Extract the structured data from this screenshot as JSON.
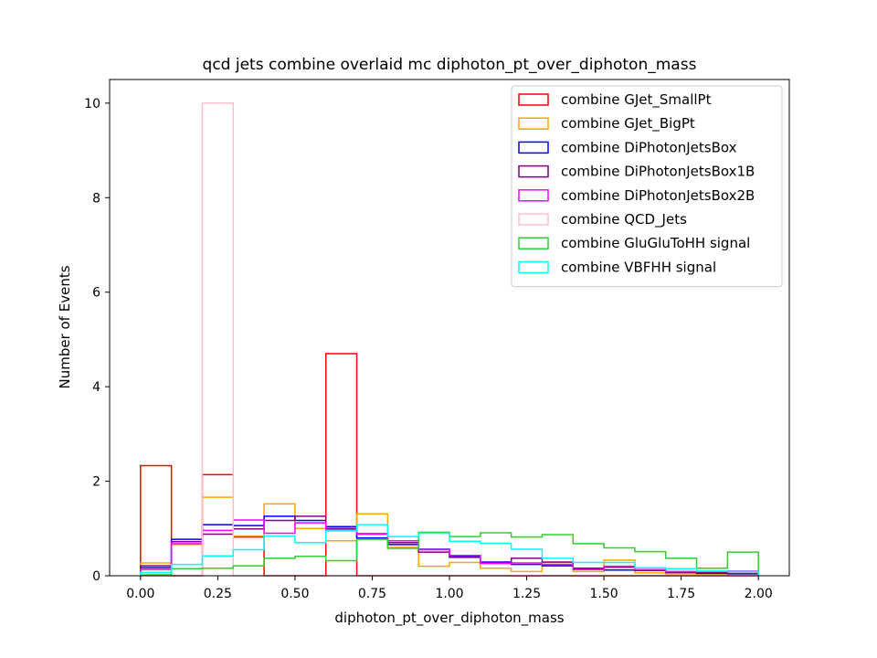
{
  "chart_data": {
    "type": "histogram",
    "title": "qcd jets combine overlaid mc diphoton_pt_over_diphoton_mass",
    "xlabel": "diphoton_pt_over_diphoton_mass",
    "ylabel": "Number of Events",
    "xlim": [
      -0.1,
      2.1
    ],
    "ylim": [
      0,
      10.5
    ],
    "grid": false,
    "legend_position": "top-right",
    "bin_edges": [
      0.0,
      0.1,
      0.2,
      0.3,
      0.4,
      0.5,
      0.6,
      0.7,
      0.8,
      0.9,
      1.0,
      1.1,
      1.2,
      1.3,
      1.4,
      1.5,
      1.6,
      1.7,
      1.8,
      1.9,
      2.0
    ],
    "x_ticks": [
      "0.00",
      "0.25",
      "0.50",
      "0.75",
      "1.00",
      "1.25",
      "1.50",
      "1.75",
      "2.00"
    ],
    "x_tick_values": [
      0,
      0.25,
      0.5,
      0.75,
      1.0,
      1.25,
      1.5,
      1.75,
      2.0
    ],
    "y_ticks": [
      "0",
      "2",
      "4",
      "6",
      "8",
      "10"
    ],
    "y_tick_values": [
      0,
      2,
      4,
      6,
      8,
      10
    ],
    "series": [
      {
        "name": "combine GJet_SmallPt",
        "color": "#ff0000",
        "values": [
          2.33,
          0,
          2.14,
          0.82,
          0,
          0,
          4.7,
          0,
          0,
          0,
          0,
          0,
          0,
          0,
          0,
          0,
          0,
          0,
          0,
          0
        ]
      },
      {
        "name": "combine GJet_BigPt",
        "color": "#ffa500",
        "values": [
          0.27,
          0.66,
          1.66,
          0.84,
          1.52,
          1.0,
          0.74,
          1.31,
          0.6,
          0.2,
          0.28,
          0.16,
          0.09,
          0.28,
          0.09,
          0.33,
          0.06,
          0.04,
          0.02,
          0.01
        ]
      },
      {
        "name": "combine DiPhotonJetsBox",
        "color": "#0000ff",
        "values": [
          0.17,
          0.77,
          1.08,
          1.06,
          1.26,
          1.17,
          1.04,
          0.8,
          0.66,
          0.56,
          0.41,
          0.29,
          0.24,
          0.21,
          0.14,
          0.12,
          0.11,
          0.07,
          0.05,
          0.04
        ]
      },
      {
        "name": "combine DiPhotonJetsBox1B",
        "color": "#800080",
        "values": [
          0.21,
          0.72,
          0.88,
          0.99,
          1.17,
          1.26,
          1.0,
          0.89,
          0.7,
          0.5,
          0.39,
          0.28,
          0.37,
          0.29,
          0.16,
          0.18,
          0.11,
          0.07,
          0.07,
          0.05
        ]
      },
      {
        "name": "combine DiPhotonJetsBox2B",
        "color": "#ff00ff",
        "values": [
          0.13,
          0.68,
          0.96,
          1.18,
          0.9,
          1.12,
          0.97,
          0.88,
          0.74,
          0.55,
          0.43,
          0.26,
          0.27,
          0.24,
          0.13,
          0.2,
          0.13,
          0.09,
          0.09,
          0.1
        ]
      },
      {
        "name": "combine QCD_Jets",
        "color": "#ffc0cb",
        "values": [
          0,
          0,
          10.0,
          0,
          0,
          0,
          0,
          0,
          0,
          0,
          0,
          0,
          0,
          0,
          0,
          0,
          0,
          0,
          0,
          0
        ]
      },
      {
        "name": "combine GluGluToHH signal",
        "color": "#32cd32",
        "values": [
          0.02,
          0.15,
          0.16,
          0.21,
          0.37,
          0.41,
          0.32,
          0.77,
          0.58,
          0.92,
          0.83,
          0.91,
          0.82,
          0.87,
          0.68,
          0.59,
          0.51,
          0.37,
          0.16,
          0.5
        ]
      },
      {
        "name": "combine VBFHH signal",
        "color": "#00ffff",
        "values": [
          0.07,
          0.24,
          0.42,
          0.55,
          0.84,
          0.7,
          0.95,
          1.08,
          0.83,
          0.9,
          0.73,
          0.69,
          0.56,
          0.37,
          0.28,
          0.28,
          0.17,
          0.15,
          0.1,
          0.09
        ]
      }
    ]
  }
}
